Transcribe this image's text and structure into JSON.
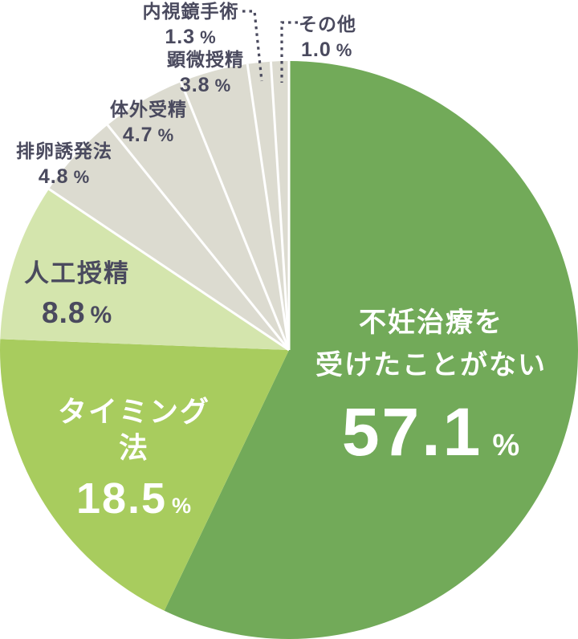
{
  "chart_data": {
    "type": "pie",
    "title": "",
    "unit": "%",
    "start_angle_deg": 0,
    "direction": "clockwise",
    "legend_position": "none",
    "slices": [
      {
        "label": "不妊治療を受けたことがない",
        "label_lines": [
          "不妊治療を",
          "受けたことがない"
        ],
        "value": 57.1,
        "display_value": "57.1",
        "unit": "%",
        "color": "#72aa59",
        "text_color": "#ffffff",
        "separator": false
      },
      {
        "label": "タイミング法",
        "value": 18.5,
        "display_value": "18.5",
        "unit": "%",
        "color": "#a8cc5e",
        "text_color": "#ffffff",
        "separator": false
      },
      {
        "label": "人工授精",
        "value": 8.8,
        "display_value": "8.8",
        "unit": "%",
        "color": "#d4e5ad",
        "text_color": "#4a4a5e",
        "separator": false
      },
      {
        "label": "排卵誘発法",
        "value": 4.8,
        "display_value": "4.8",
        "unit": "%",
        "color": "#dcdbd0",
        "text_color": "#4a4a5e",
        "separator": true
      },
      {
        "label": "体外受精",
        "value": 4.7,
        "display_value": "4.7",
        "unit": "%",
        "color": "#dcdbd0",
        "text_color": "#4a4a5e",
        "separator": true
      },
      {
        "label": "顕微授精",
        "value": 3.8,
        "display_value": "3.8",
        "unit": "%",
        "color": "#dcdbd0",
        "text_color": "#4a4a5e",
        "separator": true
      },
      {
        "label": "内視鏡手術",
        "value": 1.3,
        "display_value": "1.3",
        "unit": "%",
        "color": "#dcdbd0",
        "text_color": "#4a4a5e",
        "separator": true,
        "leader_line": true
      },
      {
        "label": "その他",
        "value": 1.0,
        "display_value": "1.0",
        "unit": "%",
        "color": "#dcdbd0",
        "text_color": "#4a4a5e",
        "separator": true,
        "leader_line": true
      }
    ],
    "colors": {
      "slice_main": "#72aa59",
      "slice_timing": "#a8cc5e",
      "slice_jinkou": "#d4e5ad",
      "slice_minor": "#dcdbd0",
      "divider": "#ffffff",
      "dark_text": "#4a4a5e",
      "leader_line": "#4a4a5e"
    }
  }
}
